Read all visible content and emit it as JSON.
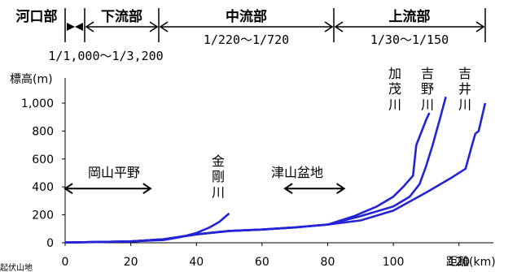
{
  "chart_data": {
    "type": "line",
    "xlabel": "距離(km)",
    "ylabel": "標高(m)",
    "xlim": [
      0,
      130
    ],
    "ylim": [
      0,
      1000
    ],
    "x_ticks": [
      0,
      20,
      40,
      60,
      80,
      100,
      120
    ],
    "y_ticks": [
      0,
      200,
      400,
      600,
      800,
      1000
    ],
    "y_tick_labels": [
      "0",
      "200",
      "400",
      "600",
      "800",
      "1,000"
    ],
    "x_tick_labels": [
      "0",
      "20",
      "40",
      "60",
      "80",
      "100",
      "120"
    ],
    "grid": false,
    "sections": [
      {
        "label": "河口部",
        "from": 0,
        "to": 3
      },
      {
        "label": "下流部",
        "from": 3,
        "to": 31
      },
      {
        "label": "中流部",
        "from": 31,
        "to": 89,
        "gradient": "1/220〜1/720"
      },
      {
        "label": "上流部",
        "from": 89,
        "to": 130,
        "gradient": "1/30〜1/150"
      }
    ],
    "lower_gradient": "1/1,000〜1/3,200",
    "regions": [
      {
        "label": "岡山平野",
        "from": 0,
        "to": 26,
        "y": 400
      },
      {
        "label": "津山盆地",
        "from": 67,
        "to": 85,
        "y": 400
      }
    ],
    "series": [
      {
        "name": "金剛川",
        "x": [
          0,
          10,
          20,
          30,
          35,
          40,
          44,
          47,
          49,
          50
        ],
        "y": [
          2,
          5,
          10,
          20,
          40,
          70,
          110,
          150,
          190,
          210
        ]
      },
      {
        "name": "加茂川",
        "x": [
          0,
          20,
          30,
          40,
          50,
          60,
          70,
          80,
          88,
          95,
          100,
          103,
          106,
          107,
          109,
          110,
          111
        ],
        "y": [
          2,
          10,
          25,
          60,
          85,
          95,
          110,
          130,
          190,
          260,
          330,
          400,
          480,
          700,
          820,
          880,
          930
        ]
      },
      {
        "name": "吉野川",
        "x": [
          0,
          20,
          30,
          40,
          50,
          60,
          70,
          80,
          90,
          100,
          105,
          108,
          110,
          112,
          114,
          116
        ],
        "y": [
          2,
          10,
          25,
          60,
          85,
          95,
          110,
          130,
          190,
          260,
          330,
          420,
          550,
          700,
          870,
          1045
        ]
      },
      {
        "name": "吉井川",
        "x": [
          0,
          20,
          30,
          40,
          50,
          60,
          70,
          80,
          90,
          100,
          110,
          118,
          122,
          124,
          125,
          126,
          127,
          128
        ],
        "y": [
          2,
          10,
          25,
          60,
          85,
          95,
          110,
          130,
          160,
          230,
          360,
          470,
          530,
          700,
          780,
          800,
          900,
          1000
        ]
      }
    ],
    "footer_partial": "起伏山地"
  }
}
